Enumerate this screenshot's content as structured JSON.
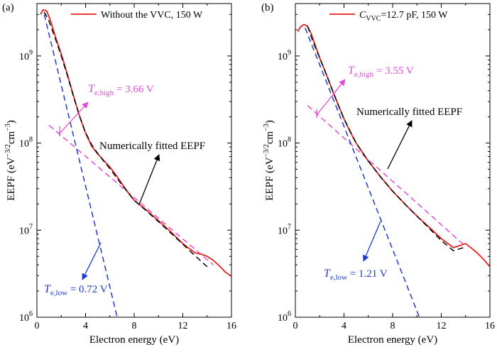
{
  "chart_data": [
    {
      "type": "line",
      "panel_label": "(a)",
      "legend": "Without the VVC, 150 W",
      "xlabel": "Electron energy (eV)",
      "ylabel": "EEPF (eV",
      "ylabel_sup1": "−3/2",
      "ylabel_mid": "cm",
      "ylabel_sup2": "−3",
      "ylabel_end": ")",
      "xlim": [
        0,
        16
      ],
      "ylim": [
        1000000,
        4000000000
      ],
      "yscale": "log",
      "x_ticks": [
        "0",
        "4",
        "8",
        "12",
        "16"
      ],
      "y_ticks": [
        {
          "value": 1000000,
          "exp": "6"
        },
        {
          "value": 10000000,
          "exp": "7"
        },
        {
          "value": 100000000,
          "exp": "8"
        },
        {
          "value": 1000000000,
          "exp": "9"
        }
      ],
      "series": [
        {
          "name": "Without the VVC, 150 W",
          "color": "#e8201e",
          "style": "solid",
          "x": [
            0.3,
            0.5,
            0.8,
            1.1,
            1.5,
            2.0,
            2.5,
            3.0,
            3.5,
            4.0,
            4.5,
            5.0,
            5.5,
            6.0,
            6.5,
            7.0,
            7.5,
            8.0,
            9.0,
            10.0,
            11.0,
            12.0,
            13.0,
            13.5,
            14.0,
            14.5,
            15.0,
            15.5,
            16.0
          ],
          "y": [
            3000000000,
            3400000000,
            3300000000,
            2600000000,
            1700000000,
            1050000000,
            620000000,
            350000000,
            205000000,
            130000000,
            92000000,
            75000000,
            63000000,
            53000000,
            43000000,
            34000000,
            27000000,
            22000000,
            17000000,
            12800000,
            9600000,
            7000000,
            5500000,
            5300000,
            5000000,
            4500000,
            3900000,
            3300000,
            2950000
          ]
        },
        {
          "name": "Numerically fitted EEPF",
          "color": "#000000",
          "style": "dashed",
          "x": [
            0.6,
            1.0,
            1.5,
            2.0,
            2.5,
            3.0,
            3.5,
            4.0,
            4.5,
            5.0,
            5.5,
            6.0,
            7.0,
            8.0,
            9.0,
            10.0,
            11.0,
            12.0,
            13.0,
            14.0
          ],
          "y": [
            3200000000,
            2500000000,
            1600000000,
            1000000000,
            600000000,
            345000000,
            205000000,
            132000000,
            96000000,
            76000000,
            62000000,
            51000000,
            33000000,
            22000000,
            16700000,
            12500000,
            9300000,
            6900000,
            5100000,
            3800000
          ]
        },
        {
          "name": "T_e,low fit",
          "color": "#1c3ad6",
          "style": "dashed",
          "x": [
            0.6,
            6.6
          ],
          "y": [
            3000000000,
            1000000
          ]
        },
        {
          "name": "T_e,high fit",
          "color": "#e44ad6",
          "style": "dashed",
          "x": [
            1.0,
            14.5
          ],
          "y": [
            160000000,
            4000000
          ]
        }
      ],
      "annotations": [
        {
          "id": "te-high",
          "T": "T",
          "sub": "e,high",
          "value": "= 3.66 V",
          "color": "#e44ad6"
        },
        {
          "id": "fitted",
          "text": "Numerically fitted EEPF",
          "color": "#000000"
        },
        {
          "id": "te-low",
          "T": "T",
          "sub": "e,low",
          "value": "= 0.72 V",
          "color": "#1c3ad6"
        }
      ]
    },
    {
      "type": "line",
      "panel_label": "(b)",
      "legend_prefix": "C",
      "legend_sub": "VVC",
      "legend_suffix": "=12.7 pF, 150 W",
      "xlabel": "Electron energy (eV)",
      "ylabel": "EEPF (eV",
      "ylabel_sup1": "−3/2",
      "ylabel_mid": "cm",
      "ylabel_sup2": "−3",
      "ylabel_end": ")",
      "xlim": [
        0,
        16
      ],
      "ylim": [
        1000000,
        4000000000
      ],
      "yscale": "log",
      "x_ticks": [
        "0",
        "4",
        "8",
        "12",
        "16"
      ],
      "y_ticks": [
        {
          "value": 1000000,
          "exp": "6"
        },
        {
          "value": 10000000,
          "exp": "7"
        },
        {
          "value": 100000000,
          "exp": "8"
        },
        {
          "value": 1000000000,
          "exp": "9"
        }
      ],
      "series": [
        {
          "name": "C_VVC=12.7 pF, 150 W",
          "color": "#e8201e",
          "style": "solid",
          "x": [
            0.2,
            0.4,
            0.7,
            1.0,
            1.3,
            1.7,
            2.0,
            2.5,
            3.0,
            3.5,
            4.0,
            4.5,
            5.0,
            6.0,
            7.0,
            8.0,
            9.0,
            10.0,
            11.0,
            12.0,
            13.0,
            14.0,
            14.5,
            15.0,
            15.5,
            16.0
          ],
          "y": [
            1900000000,
            2150000000,
            2300000000,
            2200000000,
            1800000000,
            1250000000,
            950000000,
            640000000,
            420000000,
            280000000,
            190000000,
            135000000,
            100000000,
            62000000,
            41000000,
            28000000,
            20000000,
            14500000,
            10800000,
            8000000,
            6300000,
            7000000,
            6200000,
            5400000,
            4600000,
            3800000
          ]
        },
        {
          "name": "Numerically fitted EEPF",
          "color": "#000000",
          "style": "dashed",
          "x": [
            1.0,
            1.5,
            2.0,
            2.5,
            3.0,
            3.5,
            4.0,
            5.0,
            6.0,
            7.0,
            8.0,
            9.0,
            10.0,
            11.0,
            12.0,
            13.0,
            14.0
          ],
          "y": [
            2200000000,
            1400000000,
            950000000,
            640000000,
            420000000,
            280000000,
            190000000,
            100000000,
            62000000,
            41000000,
            28000000,
            20000000,
            14500000,
            10500000,
            7600000,
            5800000,
            6400000
          ]
        },
        {
          "name": "T_e,low fit",
          "color": "#1c3ad6",
          "style": "dashed",
          "x": [
            0.8,
            10.2
          ],
          "y": [
            2100000000,
            1000000
          ]
        },
        {
          "name": "T_e,high fit",
          "color": "#e44ad6",
          "style": "dashed",
          "x": [
            1.0,
            14.0
          ],
          "y": [
            270000000,
            6500000
          ]
        }
      ],
      "annotations": [
        {
          "id": "te-high",
          "T": "T",
          "sub": "e,high",
          "value": "= 3.55 V",
          "color": "#e44ad6"
        },
        {
          "id": "fitted",
          "text": "Numerically fitted EEPF",
          "color": "#000000"
        },
        {
          "id": "te-low",
          "T": "T",
          "sub": "e,low",
          "value": "= 1.21 V",
          "color": "#1c3ad6"
        }
      ]
    }
  ]
}
